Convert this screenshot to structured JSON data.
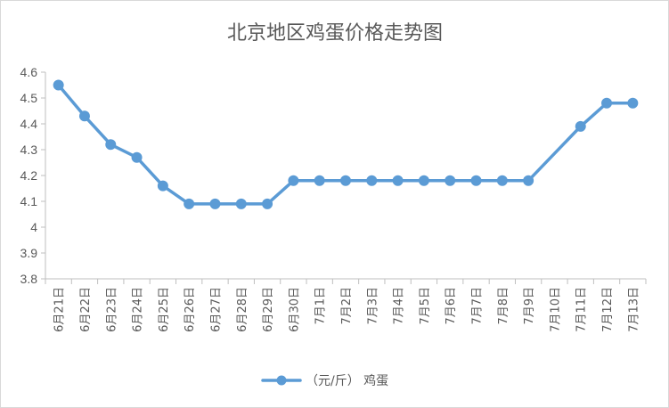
{
  "chart_data": {
    "type": "line",
    "title": "北京地区鸡蛋价格走势图",
    "xlabel": "",
    "ylabel": "",
    "categories": [
      "6月21日",
      "6月22日",
      "6月23日",
      "6月24日",
      "6月25日",
      "6月26日",
      "6月27日",
      "6月28日",
      "6月29日",
      "6月30日",
      "7月1日",
      "7月2日",
      "7月3日",
      "7月4日",
      "7月5日",
      "7月6日",
      "7月7日",
      "7月8日",
      "7月9日",
      "7月10日",
      "7月11日",
      "7月12日",
      "7月13日"
    ],
    "series": [
      {
        "name": "（元/斤） 鸡蛋",
        "values": [
          4.55,
          4.43,
          4.32,
          4.27,
          4.16,
          4.09,
          4.09,
          4.09,
          4.09,
          4.18,
          4.18,
          4.18,
          4.18,
          4.18,
          4.18,
          4.18,
          4.18,
          4.18,
          4.18,
          null,
          4.39,
          4.48,
          4.48
        ],
        "color": "#5b9bd5"
      }
    ],
    "ylim": [
      3.8,
      4.6
    ],
    "yticks": [
      "4.6",
      "4.5",
      "4.4",
      "4.3",
      "4.2",
      "4.1",
      "4",
      "3.9",
      "3.8"
    ],
    "grid": false,
    "legend": "bottom"
  }
}
